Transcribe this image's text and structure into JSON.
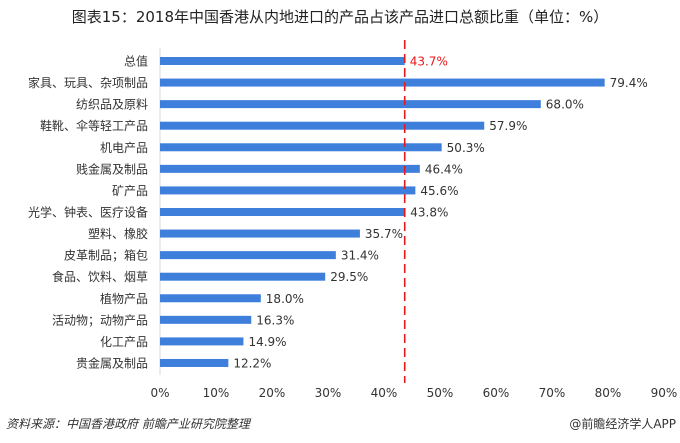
{
  "title": "图表15：2018年中国香港从内地进口的产品占该产品进口总额比重（单位：%）",
  "source": "资料来源：中国香港政府 前瞻产业研究院整理",
  "brand": "@前瞻经济学人APP",
  "chart_data": {
    "type": "bar",
    "orientation": "horizontal",
    "categories": [
      "总值",
      "家具、玩具、杂项制品",
      "纺织品及原料",
      "鞋靴、伞等轻工产品",
      "机电产品",
      "贱金属及制品",
      "矿产品",
      "光学、钟表、医疗设备",
      "塑料、橡胶",
      "皮革制品；箱包",
      "食品、饮料、烟草",
      "植物产品",
      "活动物；动物产品",
      "化工产品",
      "贵金属及制品"
    ],
    "values": [
      43.7,
      79.4,
      68.0,
      57.9,
      50.3,
      46.4,
      45.6,
      43.8,
      35.7,
      31.4,
      29.5,
      18.0,
      16.3,
      14.9,
      12.2
    ],
    "data_labels": [
      "43.7%",
      "79.4%",
      "68.0%",
      "57.9%",
      "50.3%",
      "46.4%",
      "45.6%",
      "43.8%",
      "35.7%",
      "31.4%",
      "29.5%",
      "18.0%",
      "16.3%",
      "14.9%",
      "12.2%"
    ],
    "xlim": [
      0,
      90
    ],
    "xticks": [
      "0%",
      "10%",
      "20%",
      "30%",
      "40%",
      "50%",
      "60%",
      "70%",
      "80%",
      "90%"
    ],
    "reference_line": {
      "value": 43.7,
      "style": "dashed",
      "color": "#e8191b"
    },
    "bar_color": "#3f7fdc",
    "highlight_label_color": "#e8191b",
    "grid": false
  }
}
